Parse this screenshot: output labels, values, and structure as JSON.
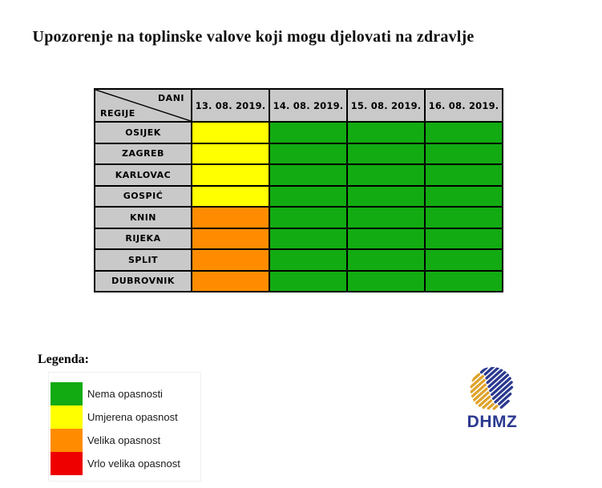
{
  "title": "Upozorenje na toplinske valove koji mogu djelovati na zdravlje",
  "chart_data": {
    "type": "heatmap",
    "title": "Upozorenje na toplinske valove koji mogu djelovati na zdravlje",
    "corner": {
      "dani": "DANI",
      "regije": "REGIJE"
    },
    "columns": [
      "13. 08. 2019.",
      "14. 08. 2019.",
      "15. 08. 2019.",
      "16. 08. 2019."
    ],
    "rows": [
      "OSIJEK",
      "ZAGREB",
      "KARLOVAC",
      "GOSPIĆ",
      "KNIN",
      "RIJEKA",
      "SPLIT",
      "DUBROVNIK"
    ],
    "values": [
      [
        "umjerena",
        "nema",
        "nema",
        "nema"
      ],
      [
        "umjerena",
        "nema",
        "nema",
        "nema"
      ],
      [
        "umjerena",
        "nema",
        "nema",
        "nema"
      ],
      [
        "umjerena",
        "nema",
        "nema",
        "nema"
      ],
      [
        "velika",
        "nema",
        "nema",
        "nema"
      ],
      [
        "velika",
        "nema",
        "nema",
        "nema"
      ],
      [
        "velika",
        "nema",
        "nema",
        "nema"
      ],
      [
        "velika",
        "nema",
        "nema",
        "nema"
      ]
    ],
    "levels": {
      "nema": {
        "label": "Nema opasnosti",
        "color": "#12AB12"
      },
      "umjerena": {
        "label": "Umjerena opasnost",
        "color": "#FFFF00"
      },
      "velika": {
        "label": "Velika opasnost",
        "color": "#FF8C00"
      },
      "vrlo_velika": {
        "label": "Vrlo velika opasnost",
        "color": "#EE0000"
      }
    },
    "legend_order": [
      "nema",
      "umjerena",
      "velika",
      "vrlo_velika"
    ],
    "header_bg": "#C9C9C9",
    "legend_position": "bottom-left"
  },
  "legend": {
    "heading": "Legenda:"
  },
  "logo": {
    "text": "DHMZ",
    "blue": "#2B3990",
    "gold": "#DFA32B"
  }
}
